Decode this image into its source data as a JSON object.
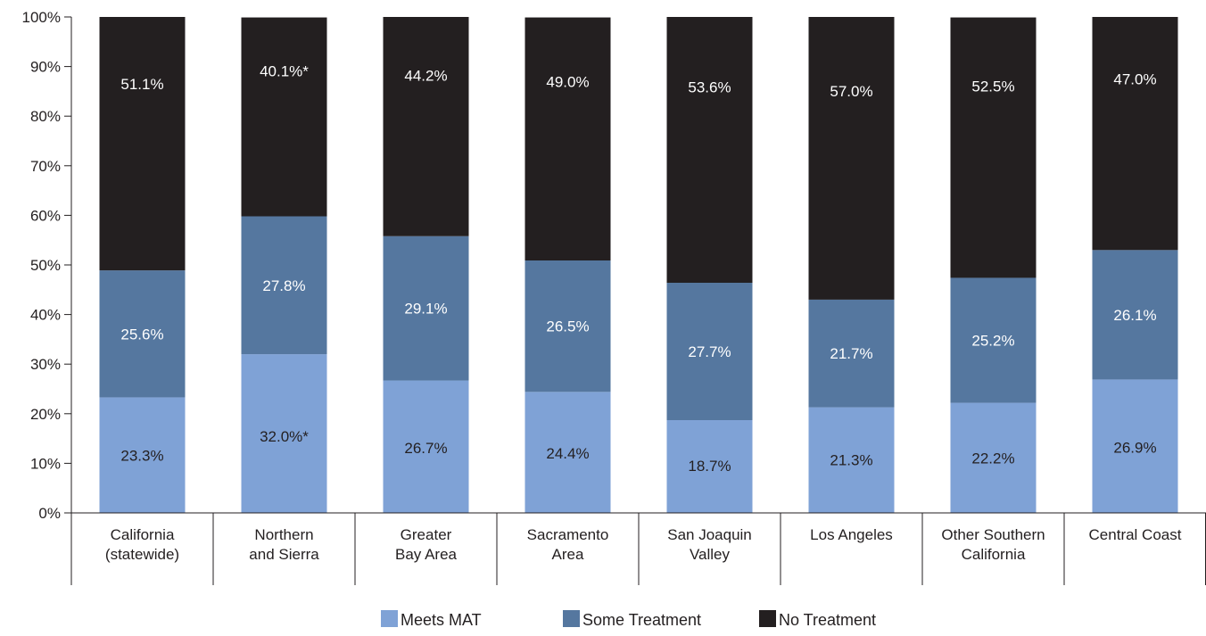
{
  "chart_data": {
    "type": "bar",
    "stacked": true,
    "percent_axis": true,
    "title": "",
    "xlabel": "",
    "ylabel": "",
    "ylim": [
      0,
      100
    ],
    "y_ticks": [
      "0%",
      "10%",
      "20%",
      "30%",
      "40%",
      "50%",
      "60%",
      "70%",
      "80%",
      "90%",
      "100%"
    ],
    "grid": false,
    "legend_position": "bottom-center",
    "categories": [
      [
        "California",
        "(statewide)"
      ],
      [
        "Northern",
        "and Sierra"
      ],
      [
        "Greater",
        "Bay Area"
      ],
      [
        "Sacramento",
        "Area"
      ],
      [
        "San Joaquin",
        "Valley"
      ],
      [
        "Los Angeles"
      ],
      [
        "Other Southern",
        "California"
      ],
      [
        "Central Coast"
      ]
    ],
    "series": [
      {
        "name": "Meets MAT",
        "color": "#7fa2d6",
        "label_color": "#231f20",
        "values": [
          23.3,
          32.0,
          26.7,
          24.4,
          18.7,
          21.3,
          22.2,
          26.9
        ],
        "labels": [
          "23.3%",
          "32.0%*",
          "26.7%",
          "24.4%",
          "18.7%",
          "21.3%",
          "22.2%",
          "26.9%"
        ]
      },
      {
        "name": "Some Treatment",
        "color": "#55779f",
        "label_color": "#ffffff",
        "values": [
          25.6,
          27.8,
          29.1,
          26.5,
          27.7,
          21.7,
          25.2,
          26.1
        ],
        "labels": [
          "25.6%",
          "27.8%",
          "29.1%",
          "26.5%",
          "27.7%",
          "21.7%",
          "25.2%",
          "26.1%"
        ]
      },
      {
        "name": "No Treatment",
        "color": "#231f20",
        "label_color": "#ffffff",
        "values": [
          51.1,
          40.1,
          44.2,
          49.0,
          53.6,
          57.0,
          52.5,
          47.0
        ],
        "labels": [
          "51.1%",
          "40.1%*",
          "44.2%",
          "49.0%",
          "53.6%",
          "57.0%",
          "52.5%",
          "47.0%"
        ]
      }
    ]
  }
}
